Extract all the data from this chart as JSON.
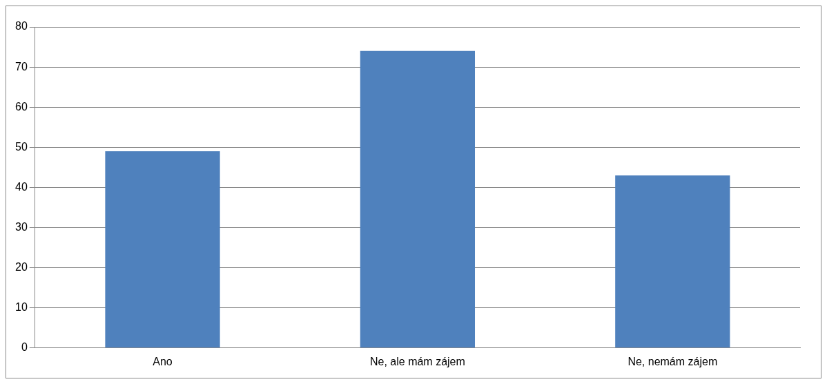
{
  "chart_data": {
    "type": "bar",
    "categories": [
      "Ano",
      "Ne, ale mám zájem",
      "Ne, nemám zájem"
    ],
    "values": [
      49,
      74,
      43
    ],
    "color": "#4f81bd",
    "ylim": [
      0,
      80
    ],
    "yticks": [
      0,
      10,
      20,
      30,
      40,
      50,
      60,
      70,
      80
    ],
    "grid": "y",
    "legend": false
  }
}
